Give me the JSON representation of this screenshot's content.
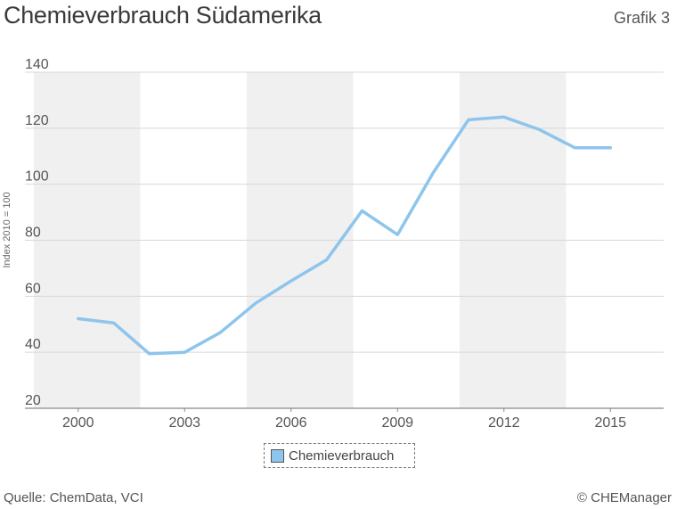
{
  "header": {
    "title": "Chemieverbrauch Südamerika",
    "grafik": "Grafik 3"
  },
  "footer": {
    "source": "Quelle: ChemData, VCI",
    "copyright": "© CHEManager"
  },
  "chart_data": {
    "type": "line",
    "ylabel": "Index 2010 = 100",
    "ylim": [
      20,
      140
    ],
    "yticks": [
      20,
      40,
      60,
      80,
      100,
      120,
      140
    ],
    "xlim": [
      1998.5,
      2016.5
    ],
    "xticks": [
      2000,
      2003,
      2006,
      2009,
      2012,
      2015
    ],
    "shaded_bands": [
      [
        1998.75,
        2001.75
      ],
      [
        2004.75,
        2007.75
      ],
      [
        2010.75,
        2013.75
      ]
    ],
    "grid": true,
    "legend_position": "bottom-center",
    "colors": {
      "line": "#8ec5ec",
      "band": "#f0f0f0",
      "grid": "#d8d8d8",
      "axis": "#888888"
    },
    "series": [
      {
        "name": "Chemieverbrauch",
        "x": [
          2000,
          2001,
          2002,
          2003,
          2004,
          2005,
          2006,
          2007,
          2008,
          2009,
          2010,
          2011,
          2012,
          2013,
          2014,
          2015
        ],
        "values": [
          52,
          50.5,
          39.5,
          40,
          47,
          57.5,
          65.5,
          73,
          90.5,
          82,
          104,
          123,
          124,
          119.5,
          113,
          113
        ]
      }
    ]
  }
}
